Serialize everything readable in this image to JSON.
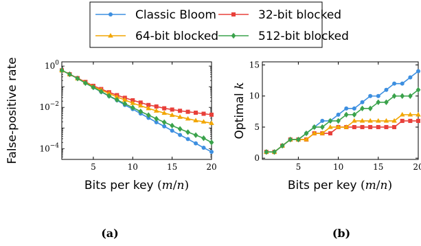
{
  "legend": {
    "placement": "top-center",
    "columns": 2,
    "entries": [
      {
        "name": "Classic Bloom",
        "color": "#3d8fe0",
        "marker": "circle"
      },
      {
        "name": "32-bit blocked",
        "color": "#e8403a",
        "marker": "square"
      },
      {
        "name": "64-bit blocked",
        "color": "#f2a602",
        "marker": "triangle"
      },
      {
        "name": "512-bit blocked",
        "color": "#3aa24b",
        "marker": "diamond"
      }
    ]
  },
  "chart_data": [
    {
      "panel_label": "(a)",
      "type": "line",
      "xlabel": "Bits per key (m/n)",
      "ylabel": "False-positive rate",
      "yscale": "log",
      "xlim": [
        1,
        20
      ],
      "ylim": [
        3e-05,
        1.6
      ],
      "xticks": [
        5,
        10,
        15,
        20
      ],
      "yticks": [
        {
          "v": 1,
          "base": "10",
          "exp": "0"
        },
        {
          "v": 0.01,
          "base": "10",
          "exp": "−2"
        },
        {
          "v": 0.0001,
          "base": "10",
          "exp": "−4"
        }
      ],
      "grid": false,
      "x": [
        1,
        2,
        3,
        4,
        5,
        6,
        7,
        8,
        9,
        10,
        11,
        12,
        13,
        14,
        15,
        16,
        17,
        18,
        19,
        20
      ],
      "series": [
        {
          "name": "Classic Bloom",
          "values": [
            0.62,
            0.4,
            0.25,
            0.15,
            0.092,
            0.056,
            0.035,
            0.022,
            0.013,
            0.0082,
            0.005,
            0.0031,
            0.0019,
            0.0012,
            0.00074,
            0.00046,
            0.00029,
            0.00018,
            0.00011,
            7e-05
          ]
        },
        {
          "name": "32-bit blocked",
          "values": [
            0.62,
            0.4,
            0.26,
            0.17,
            0.11,
            0.077,
            0.054,
            0.039,
            0.029,
            0.022,
            0.017,
            0.013,
            0.011,
            0.009,
            0.0078,
            0.0068,
            0.0061,
            0.0055,
            0.0049,
            0.0044
          ]
        },
        {
          "name": "64-bit blocked",
          "values": [
            0.62,
            0.4,
            0.25,
            0.16,
            0.1,
            0.069,
            0.047,
            0.032,
            0.023,
            0.016,
            0.012,
            0.0089,
            0.0068,
            0.0053,
            0.0042,
            0.0034,
            0.0028,
            0.0023,
            0.002,
            0.0017
          ]
        },
        {
          "name": "512-bit blocked",
          "values": [
            0.62,
            0.4,
            0.25,
            0.15,
            0.093,
            0.058,
            0.036,
            0.023,
            0.015,
            0.0097,
            0.0063,
            0.0042,
            0.0028,
            0.0019,
            0.0013,
            0.0009,
            0.00063,
            0.00045,
            0.00032,
            0.0002
          ]
        }
      ]
    },
    {
      "panel_label": "(b)",
      "type": "line",
      "xlabel": "Bits per key (m/n)",
      "ylabel": "Optimal k",
      "yscale": "linear",
      "xlim": [
        0.5,
        20
      ],
      "ylim": [
        -0.2,
        15.5
      ],
      "xticks": [
        5,
        10,
        15,
        20
      ],
      "yticks": [
        0,
        5,
        10,
        15
      ],
      "grid": false,
      "x": [
        1,
        2,
        3,
        4,
        5,
        6,
        7,
        8,
        9,
        10,
        11,
        12,
        13,
        14,
        15,
        16,
        17,
        18,
        19,
        20
      ],
      "series": [
        {
          "name": "Classic Bloom",
          "values": [
            1,
            1,
            2,
            3,
            3,
            4,
            5,
            6,
            6,
            7,
            8,
            8,
            9,
            10,
            10,
            11,
            12,
            12,
            13,
            14
          ]
        },
        {
          "name": "32-bit blocked",
          "values": [
            1,
            1,
            2,
            3,
            3,
            3,
            4,
            4,
            4,
            5,
            5,
            5,
            5,
            5,
            5,
            5,
            5,
            6,
            6,
            6
          ]
        },
        {
          "name": "64-bit blocked",
          "values": [
            1,
            1,
            2,
            3,
            3,
            3,
            4,
            4,
            5,
            5,
            5,
            6,
            6,
            6,
            6,
            6,
            6,
            7,
            7,
            7
          ]
        },
        {
          "name": "512-bit blocked",
          "values": [
            1,
            1,
            2,
            3,
            3,
            4,
            5,
            5,
            6,
            6,
            7,
            7,
            8,
            8,
            9,
            9,
            10,
            10,
            10,
            11
          ]
        }
      ]
    }
  ]
}
